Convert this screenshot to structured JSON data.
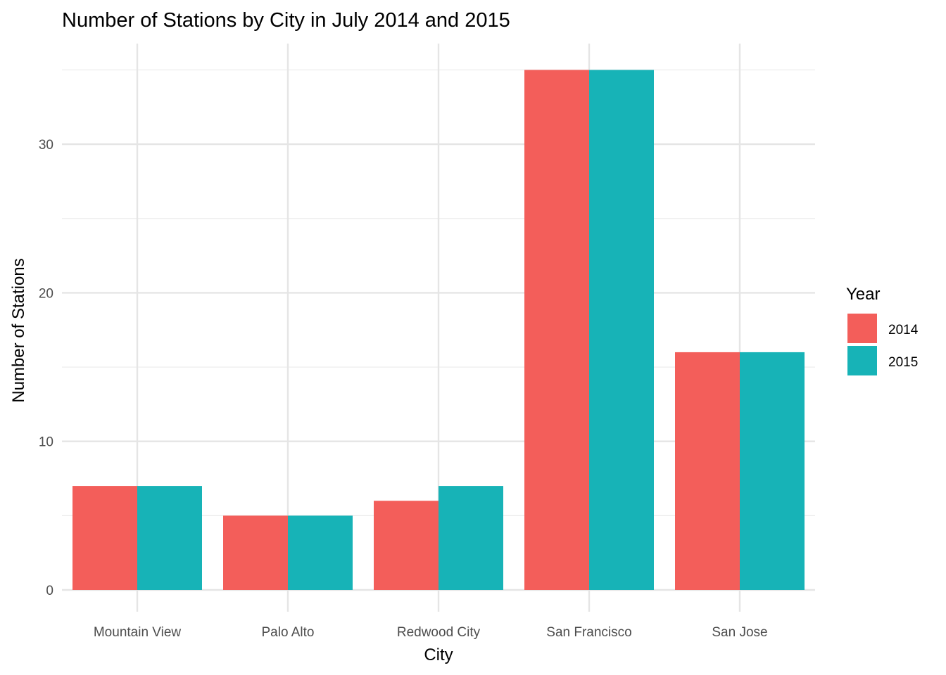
{
  "chart_data": {
    "type": "bar",
    "title": "Number of Stations by City in July 2014 and 2015",
    "xlabel": "City",
    "ylabel": "Number of Stations",
    "categories": [
      "Mountain View",
      "Palo Alto",
      "Redwood City",
      "San Francisco",
      "San Jose"
    ],
    "series": [
      {
        "name": "2014",
        "values": [
          7,
          5,
          6,
          35,
          16
        ],
        "color": "#F35E5A"
      },
      {
        "name": "2015",
        "values": [
          7,
          5,
          7,
          35,
          16
        ],
        "color": "#17B3B7"
      }
    ],
    "ylim": [
      0,
      35
    ],
    "yticks": [
      0,
      10,
      20,
      30
    ],
    "grid": true,
    "legend": {
      "title": "Year",
      "position": "right"
    }
  }
}
